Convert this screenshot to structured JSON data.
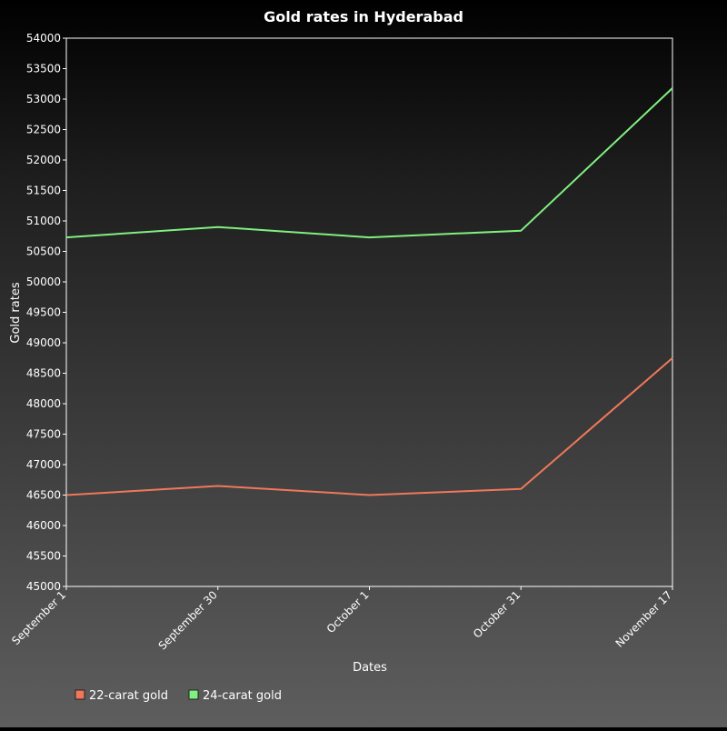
{
  "chart_data": {
    "type": "line",
    "title": "Gold rates in Hyderabad",
    "xlabel": "Dates",
    "ylabel": "Gold rates",
    "categories": [
      "September 1",
      "September 30",
      "October 1",
      "October 31",
      "November 17"
    ],
    "ylim": [
      45000,
      54000
    ],
    "yticks": [
      45000,
      45500,
      46000,
      46500,
      47000,
      47500,
      48000,
      48500,
      49000,
      49500,
      50000,
      50500,
      51000,
      51500,
      52000,
      52500,
      53000,
      53500,
      54000
    ],
    "grid": false,
    "legend_position": "bottom-left",
    "series": [
      {
        "name": "22-carat gold",
        "color": "#f0785a",
        "values": [
          46500,
          46650,
          46500,
          46600,
          48750
        ]
      },
      {
        "name": "24-carat gold",
        "color": "#80f080",
        "values": [
          50730,
          50900,
          50730,
          50840,
          53180
        ]
      }
    ]
  }
}
